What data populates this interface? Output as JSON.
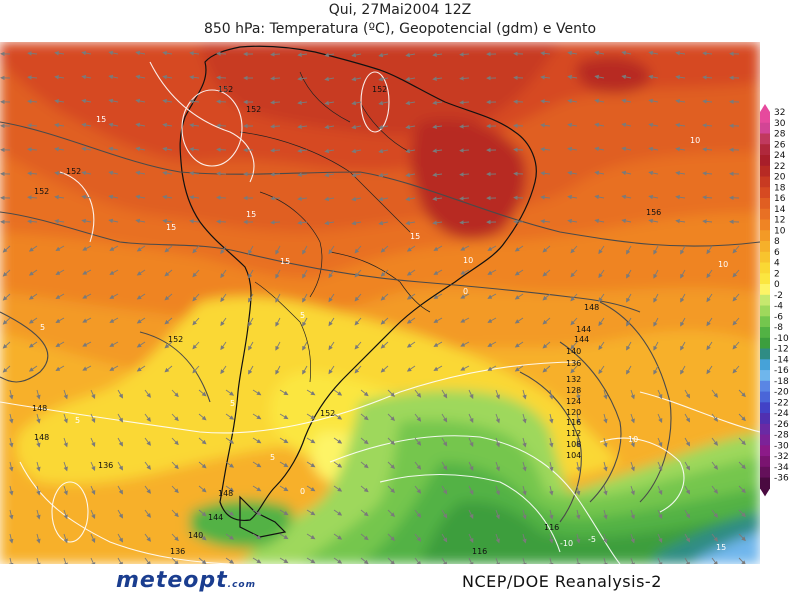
{
  "header": {
    "line1": "Qui, 27Mai2004 12Z",
    "line2": "850 hPa: Temperatura (ºC), Geopotencial (gdm) e Vento"
  },
  "footer": {
    "logo_main": "meteopt",
    "logo_suffix": ".com",
    "credit": "NCEP/DOE Reanalysis-2"
  },
  "map_data": {
    "variable": "850 hPa temperature, geopotential height and wind",
    "colorbar": {
      "ticks": [
        32,
        30,
        28,
        26,
        24,
        22,
        20,
        18,
        16,
        14,
        12,
        10,
        8,
        6,
        4,
        2,
        0,
        -2,
        -4,
        -6,
        -8,
        -10,
        -12,
        -14,
        -16,
        -18,
        -20,
        -22,
        -24,
        -26,
        -28,
        -30,
        -32,
        -34,
        -36
      ],
      "colors": [
        "#e64a9d",
        "#d24595",
        "#c0395e",
        "#b0283c",
        "#a81e2a",
        "#b72a24",
        "#c83a22",
        "#d64a22",
        "#e05e22",
        "#e87024",
        "#ef8424",
        "#f39a26",
        "#f6b02a",
        "#f8c42e",
        "#fad834",
        "#fbe640",
        "#fdf466",
        "#c6e86e",
        "#9ed85c",
        "#74c64e",
        "#52b244",
        "#3c9e3e",
        "#2f8c84",
        "#46a2d8",
        "#6fb6ec",
        "#5a86e4",
        "#4a66d8",
        "#4242c6",
        "#5030b0",
        "#6a2aa4",
        "#7c2298",
        "#8c1a88",
        "#7a1470",
        "#64105a",
        "#4a0a40"
      ]
    },
    "temperature_labels": [
      "15",
      "15",
      "15",
      "15",
      "15",
      "15",
      "10",
      "10",
      "10",
      "5",
      "5",
      "5",
      "5",
      "5",
      "0",
      "0",
      "-5",
      "-10",
      "10",
      "15"
    ],
    "geopotential_labels": [
      "152",
      "152",
      "152",
      "152",
      "152",
      "152",
      "152",
      "156",
      "148",
      "148",
      "148",
      "148",
      "144",
      "144",
      "144",
      "140",
      "140",
      "136",
      "136",
      "136",
      "132",
      "128",
      "124",
      "120",
      "116",
      "112",
      "108",
      "104",
      "116",
      "116"
    ]
  }
}
